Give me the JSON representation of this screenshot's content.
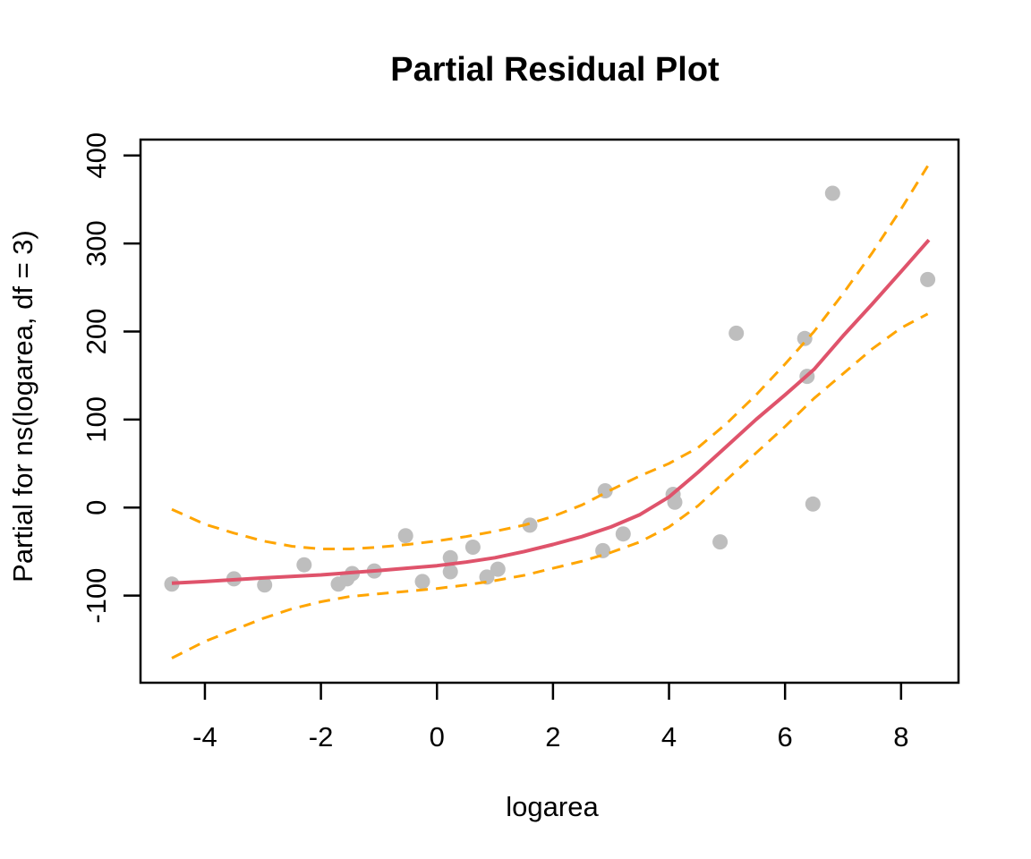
{
  "chart_data": {
    "type": "scatter",
    "title": "Partial Residual Plot",
    "xlabel": "logarea",
    "ylabel": "Partial for ns(logarea, df = 3)",
    "xlim": [
      -5.11,
      8.99
    ],
    "ylim": [
      -199,
      418
    ],
    "x_ticks": [
      -4,
      -2,
      0,
      2,
      4,
      6,
      8
    ],
    "y_ticks": [
      -100,
      0,
      100,
      200,
      300,
      400
    ],
    "grid": false,
    "legend_position": "none",
    "colors": {
      "points": "#bebebe",
      "fit_line": "#df536b",
      "se_band": "#ffa500",
      "axis": "#000000",
      "background": "#ffffff"
    },
    "series": [
      {
        "name": "partial-residual-points",
        "role": "residuals",
        "type": "scatter",
        "color": "#bebebe",
        "points": [
          [
            -4.57,
            -87
          ],
          [
            -3.5,
            -81
          ],
          [
            -2.97,
            -88
          ],
          [
            -2.29,
            -65
          ],
          [
            -1.7,
            -87
          ],
          [
            -1.55,
            -81
          ],
          [
            -1.46,
            -75
          ],
          [
            -1.08,
            -72
          ],
          [
            -0.54,
            -32
          ],
          [
            -0.25,
            -84
          ],
          [
            0.23,
            -57
          ],
          [
            0.23,
            -73
          ],
          [
            0.62,
            -45
          ],
          [
            0.86,
            -79
          ],
          [
            1.05,
            -70
          ],
          [
            1.6,
            -20
          ],
          [
            2.9,
            19
          ],
          [
            2.86,
            -49
          ],
          [
            3.21,
            -30
          ],
          [
            4.07,
            15
          ],
          [
            4.1,
            6
          ],
          [
            4.88,
            -39
          ],
          [
            5.16,
            198
          ],
          [
            6.34,
            192
          ],
          [
            6.38,
            149
          ],
          [
            6.48,
            4
          ],
          [
            6.82,
            357
          ],
          [
            8.46,
            259
          ]
        ]
      },
      {
        "name": "fitted-spline",
        "role": "fit",
        "type": "line",
        "style": "solid",
        "color": "#df536b",
        "points": [
          [
            -4.57,
            -86
          ],
          [
            -4,
            -84
          ],
          [
            -3,
            -80
          ],
          [
            -2,
            -76.5
          ],
          [
            -1,
            -71.5
          ],
          [
            0,
            -66
          ],
          [
            0.5,
            -62
          ],
          [
            1,
            -57
          ],
          [
            1.5,
            -50
          ],
          [
            2,
            -42
          ],
          [
            2.5,
            -33
          ],
          [
            3,
            -22
          ],
          [
            3.5,
            -8
          ],
          [
            4,
            12
          ],
          [
            4.5,
            40
          ],
          [
            5,
            70
          ],
          [
            5.5,
            100
          ],
          [
            6,
            128
          ],
          [
            6.5,
            157
          ],
          [
            7,
            195
          ],
          [
            7.5,
            231
          ],
          [
            8,
            268
          ],
          [
            8.48,
            304
          ]
        ]
      },
      {
        "name": "upper-standard-error-band",
        "role": "upper-se",
        "type": "line",
        "style": "dashed",
        "color": "#ffa500",
        "points": [
          [
            -4.57,
            -2
          ],
          [
            -4,
            -19
          ],
          [
            -3.5,
            -29
          ],
          [
            -3,
            -38
          ],
          [
            -2.5,
            -44
          ],
          [
            -2,
            -47
          ],
          [
            -1.5,
            -47
          ],
          [
            -1,
            -45
          ],
          [
            -0.5,
            -42
          ],
          [
            0,
            -38
          ],
          [
            0.5,
            -33
          ],
          [
            1,
            -27
          ],
          [
            1.5,
            -20
          ],
          [
            2,
            -10
          ],
          [
            2.5,
            3
          ],
          [
            3,
            20
          ],
          [
            3.5,
            36
          ],
          [
            4,
            50
          ],
          [
            4.5,
            68
          ],
          [
            5,
            96
          ],
          [
            5.5,
            128
          ],
          [
            6,
            163
          ],
          [
            6.5,
            200
          ],
          [
            7,
            243
          ],
          [
            7.5,
            289
          ],
          [
            8,
            339
          ],
          [
            8.46,
            388
          ]
        ]
      },
      {
        "name": "lower-standard-error-band",
        "role": "lower-se",
        "type": "line",
        "style": "dashed",
        "color": "#ffa500",
        "points": [
          [
            -4.57,
            -171
          ],
          [
            -4,
            -152
          ],
          [
            -3.5,
            -139
          ],
          [
            -3,
            -126
          ],
          [
            -2.5,
            -115
          ],
          [
            -2,
            -107
          ],
          [
            -1.5,
            -101
          ],
          [
            -1,
            -98
          ],
          [
            -0.5,
            -95
          ],
          [
            0,
            -92
          ],
          [
            0.5,
            -88
          ],
          [
            1,
            -83
          ],
          [
            1.5,
            -77
          ],
          [
            2,
            -69
          ],
          [
            2.5,
            -61
          ],
          [
            3,
            -51
          ],
          [
            3.5,
            -39
          ],
          [
            4,
            -22
          ],
          [
            4.5,
            2
          ],
          [
            5,
            32
          ],
          [
            5.5,
            62
          ],
          [
            6,
            92
          ],
          [
            6.5,
            124
          ],
          [
            7,
            152
          ],
          [
            7.5,
            180
          ],
          [
            8,
            204
          ],
          [
            8.46,
            220
          ]
        ]
      }
    ]
  }
}
